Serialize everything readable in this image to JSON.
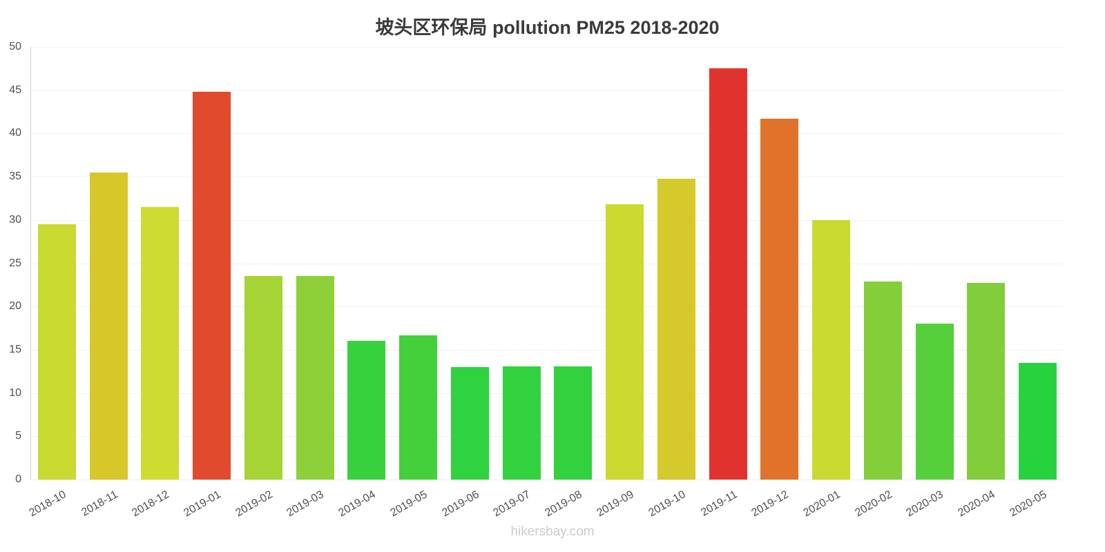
{
  "title": "坡头区环保局 pollution PM25 2018-2020",
  "footer": "hikersbay.com",
  "chart_data": {
    "type": "bar",
    "title": "坡头区环保局 pollution PM25 2018-2020",
    "xlabel": "",
    "ylabel": "",
    "ylim": [
      0,
      50
    ],
    "yticks": [
      0,
      5,
      10,
      15,
      20,
      25,
      30,
      35,
      40,
      45,
      50
    ],
    "grid": true,
    "legend": false,
    "categories": [
      "2018-10",
      "2018-11",
      "2018-12",
      "2019-01",
      "2019-02",
      "2019-03",
      "2019-04",
      "2019-05",
      "2019-06",
      "2019-07",
      "2019-08",
      "2019-09",
      "2019-10",
      "2019-11",
      "2019-12",
      "2020-01",
      "2020-02",
      "2020-03",
      "2020-04",
      "2020-05"
    ],
    "values": [
      29.5,
      35.5,
      31.5,
      44.8,
      23.5,
      23.5,
      16.0,
      16.7,
      13.0,
      13.1,
      13.1,
      31.8,
      34.8,
      47.5,
      41.7,
      30.0,
      22.9,
      18.0,
      22.7,
      13.5
    ],
    "colors": [
      "#c9da30",
      "#d8c728",
      "#cedb31",
      "#e14a2d",
      "#a6d434",
      "#8ed039",
      "#36d13c",
      "#43d03b",
      "#2fd23f",
      "#31d23e",
      "#31d23e",
      "#ccd930",
      "#d5c92b",
      "#e1332d",
      "#e0722a",
      "#c9da30",
      "#84ce3a",
      "#55d03a",
      "#82ce3a",
      "#26d33f"
    ],
    "axis_color": "#cccccc",
    "label_color": "#4f4f4f",
    "title_color": "#3a3a3a",
    "watermark_color": "#cbcbcb"
  }
}
